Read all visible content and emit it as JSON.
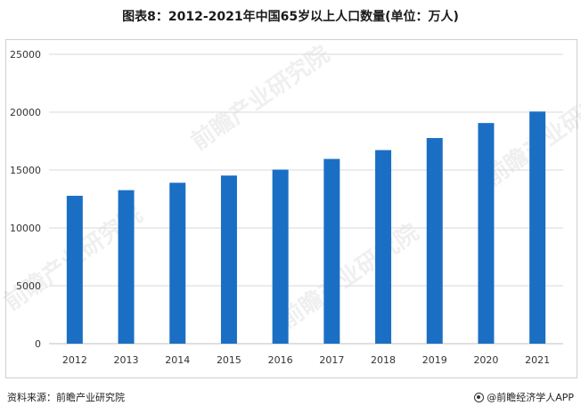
{
  "chart_data": {
    "type": "bar",
    "title": "图表8：2012-2021年中国65岁以上人口数量(单位：万人)",
    "categories": [
      "2012",
      "2013",
      "2014",
      "2015",
      "2016",
      "2017",
      "2018",
      "2019",
      "2020",
      "2021"
    ],
    "values": [
      12777,
      13262,
      13902,
      14524,
      15037,
      15961,
      16724,
      17767,
      19064,
      20056
    ],
    "ylim": [
      0,
      25000
    ],
    "yticks": [
      0,
      5000,
      10000,
      15000,
      20000,
      25000
    ],
    "grid": true,
    "bar_color": "#1a6fc4",
    "legend": "none"
  },
  "footer": {
    "source": "资料来源：前瞻产业研究院",
    "brand": "@前瞻经济学人APP"
  },
  "watermark": {
    "text": "前瞻产业研究院"
  }
}
